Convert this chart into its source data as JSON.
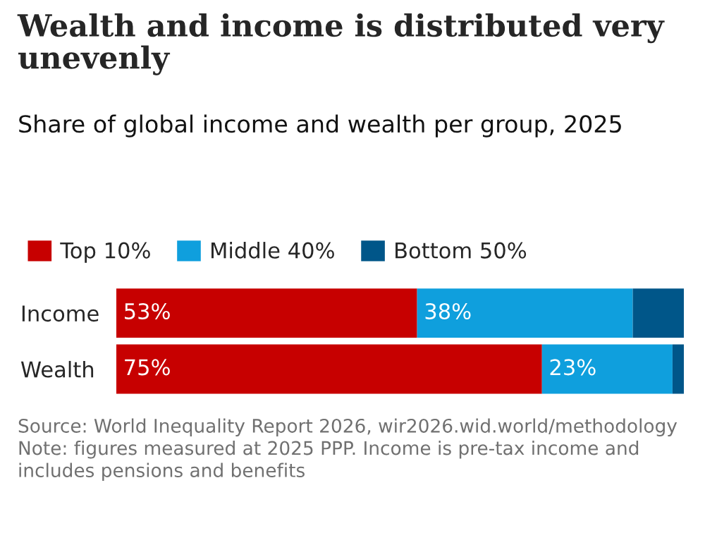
{
  "chart_data": {
    "type": "bar",
    "orientation": "horizontal",
    "stacked": true,
    "title": "Wealth and income is distributed very unevenly",
    "subtitle": "Share of global income and wealth per group, 2025",
    "categories": [
      "Income",
      "Wealth"
    ],
    "series": [
      {
        "name": "Top 10%",
        "color": "#c70000",
        "values": [
          53,
          75
        ],
        "value_labels": [
          "53%",
          "75%"
        ]
      },
      {
        "name": "Middle 40%",
        "color": "#0f9fdd",
        "values": [
          38,
          23
        ],
        "value_labels": [
          "38%",
          "23%"
        ]
      },
      {
        "name": "Bottom 50%",
        "color": "#005689",
        "values": [
          9,
          2
        ],
        "value_labels": [
          null,
          null
        ]
      }
    ],
    "xlim": [
      0,
      100
    ],
    "tick_labels": "y",
    "grid": false,
    "legend": "top left",
    "annotations": [
      "Source: World Inequality Report 2026, wir2026.wid.world/methodology Note: figures measured at 2025 PPP. Income is pre-tax income and includes pensions and benefits"
    ]
  }
}
